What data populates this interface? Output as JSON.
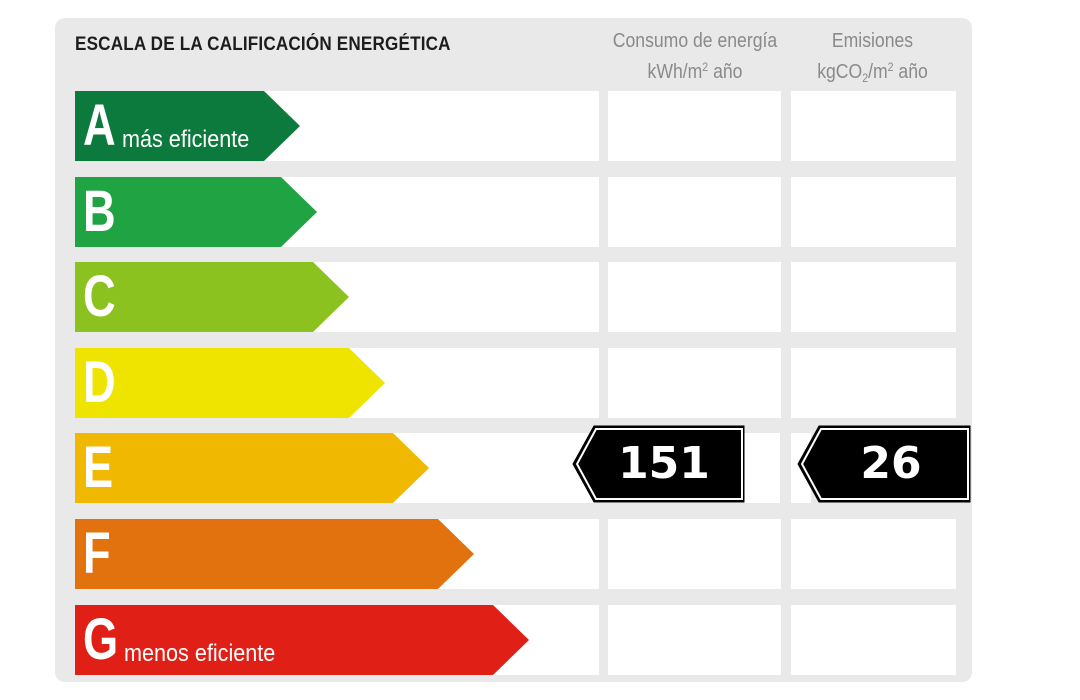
{
  "header": {
    "title": "ESCALA DE LA CALIFICACIÓN ENERGÉTICA",
    "consumo_line1": "Consumo de energía",
    "consumo_line2_pre": "kWh/m",
    "consumo_line2_sup": "2",
    "consumo_line2_post": " año",
    "emisiones_line1": "Emisiones",
    "emisiones_line2_pre": "kgCO",
    "emisiones_line2_sub": "2",
    "emisiones_line2_mid": "/m",
    "emisiones_line2_sup": "2",
    "emisiones_line2_post": " año"
  },
  "ratings": [
    {
      "letter": "A",
      "label": "más eficiente",
      "color": "#0d7a3d"
    },
    {
      "letter": "B",
      "label": "",
      "color": "#1fa343"
    },
    {
      "letter": "C",
      "label": "",
      "color": "#8cc21f"
    },
    {
      "letter": "D",
      "label": "",
      "color": "#efe400"
    },
    {
      "letter": "E",
      "label": "",
      "color": "#f0b800"
    },
    {
      "letter": "F",
      "label": "",
      "color": "#e2720e"
    },
    {
      "letter": "G",
      "label": "menos eficiente",
      "color": "#e01f17"
    }
  ],
  "result": {
    "rating": "E",
    "consumo_value": "151",
    "emisiones_value": "26"
  },
  "colors": {
    "panel": "#e9e9e9",
    "marker": "#000000"
  }
}
